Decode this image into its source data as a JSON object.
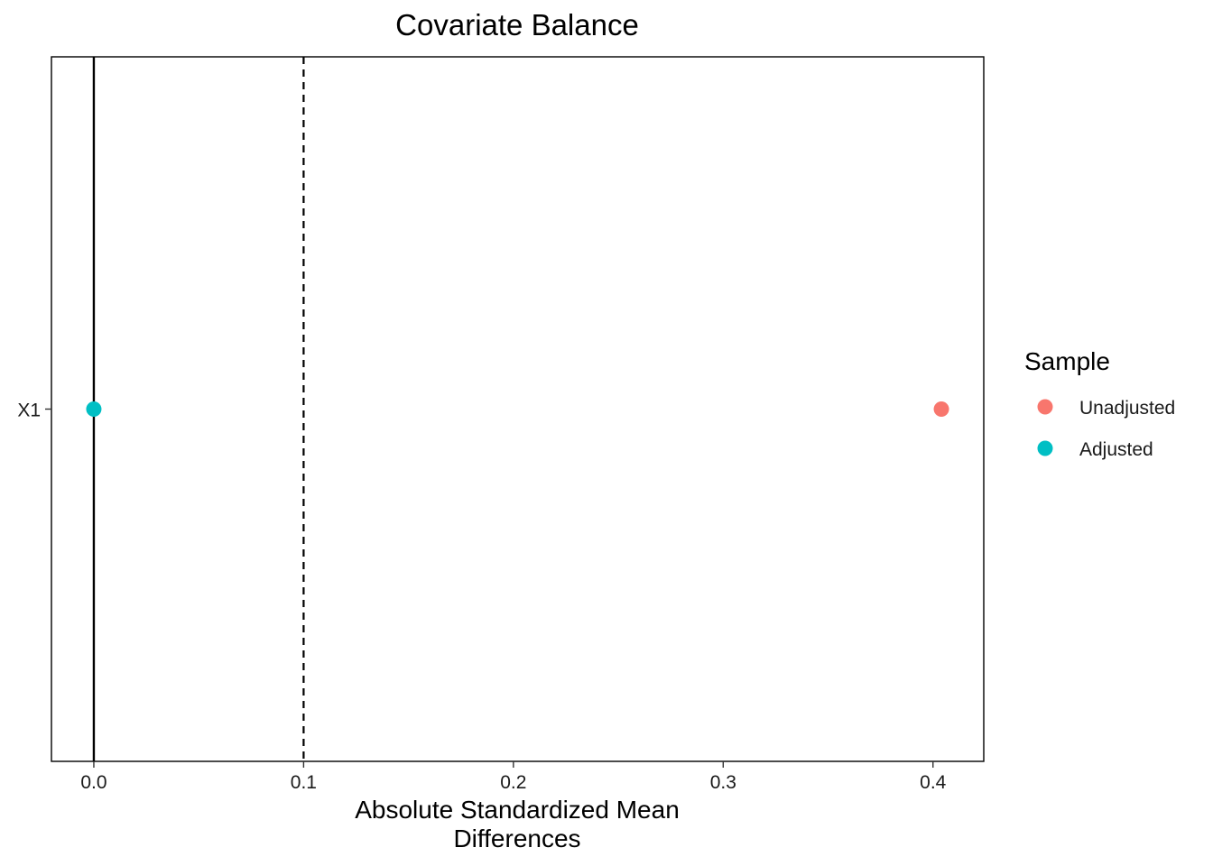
{
  "chart_data": {
    "type": "scatter",
    "title": "Covariate Balance",
    "xlabel_lines": [
      "Absolute Standardized Mean",
      "Differences"
    ],
    "ylabel": "",
    "xlim": [
      -0.0202,
      0.4242
    ],
    "x_ticks": [
      0.0,
      0.1,
      0.2,
      0.3,
      0.4
    ],
    "x_tick_labels": [
      "0.0",
      "0.1",
      "0.2",
      "0.3",
      "0.4"
    ],
    "categories": [
      "X1"
    ],
    "reference_lines": [
      {
        "x": 0.0,
        "style": "solid"
      },
      {
        "x": 0.1,
        "style": "dashed"
      }
    ],
    "series": [
      {
        "name": "Unadjusted",
        "color": "#F8766D",
        "values": [
          0.404
        ]
      },
      {
        "name": "Adjusted",
        "color": "#00BFC4",
        "values": [
          0.0
        ]
      }
    ],
    "legend": {
      "title": "Sample",
      "position": "right"
    },
    "grid": false
  }
}
